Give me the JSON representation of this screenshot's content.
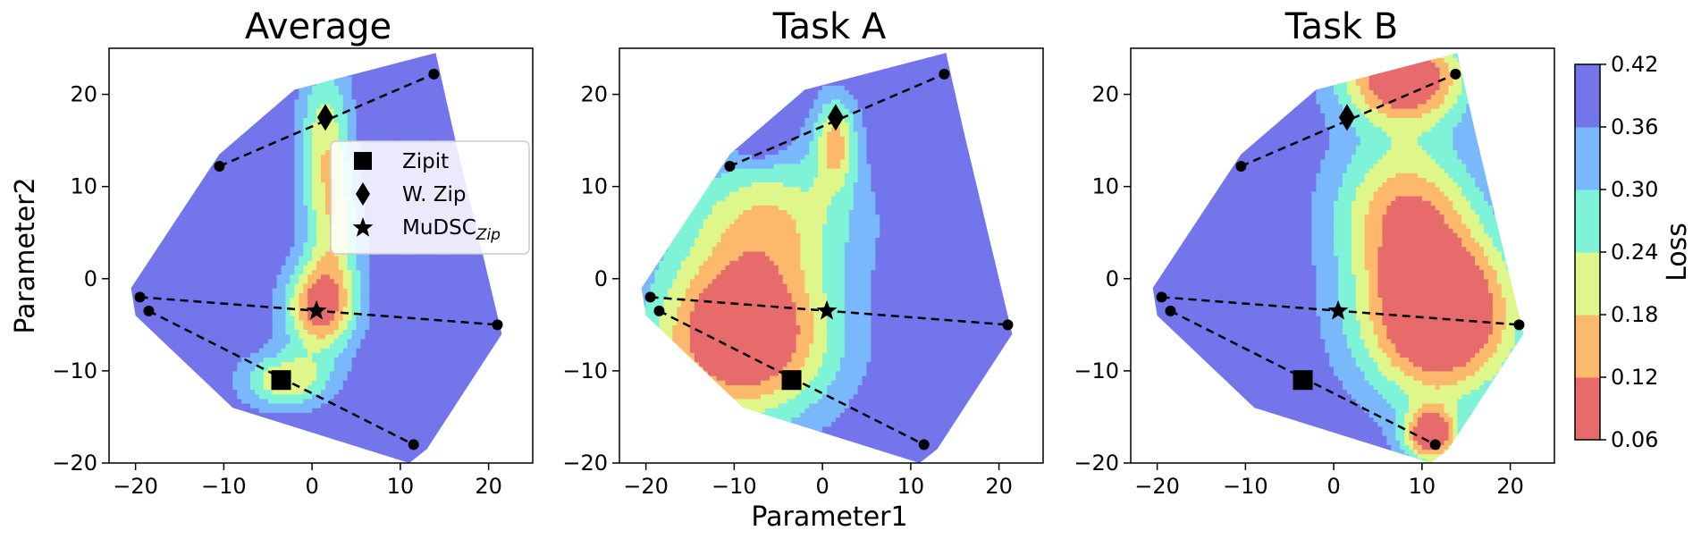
{
  "chart_data": {
    "type": "heatmap",
    "description_kind": "loss landscape contour plots",
    "panels": [
      {
        "title": "Average"
      },
      {
        "title": "Task A"
      },
      {
        "title": "Task B"
      }
    ],
    "xlabel": "Parameter1",
    "ylabel": "Parameter2",
    "xlim": [
      -23,
      25
    ],
    "ylim": [
      -20,
      25
    ],
    "xticks": [
      "−20",
      "−10",
      "0",
      "10",
      "20"
    ],
    "xtick_values": [
      -20,
      -10,
      0,
      10,
      20
    ],
    "yticks": [
      "−20",
      "−10",
      "0",
      "10",
      "20"
    ],
    "ytick_values": [
      -20,
      -10,
      0,
      10,
      20
    ],
    "colorbar": {
      "label": "Loss",
      "levels": [
        0.06,
        0.12,
        0.18,
        0.24,
        0.3,
        0.36,
        0.42
      ],
      "tick_labels": [
        "0.06",
        "0.12",
        "0.18",
        "0.24",
        "0.30",
        "0.36",
        "0.42"
      ],
      "colors": [
        "#e86b6b",
        "#fcb96c",
        "#dff78a",
        "#7ef3d7",
        "#78b8fb",
        "#7375eb"
      ]
    },
    "region_outline": [
      [
        -20.5,
        -1
      ],
      [
        -10.5,
        13.5
      ],
      [
        -2,
        20.5
      ],
      [
        14,
        24.5
      ],
      [
        16,
        16
      ],
      [
        20,
        0
      ],
      [
        21.5,
        -6
      ],
      [
        13,
        -18.5
      ],
      [
        11,
        -20
      ],
      [
        -9,
        -14
      ],
      [
        -20,
        -4
      ]
    ],
    "legend": [
      {
        "marker": "square",
        "label": "Zipit"
      },
      {
        "marker": "diamond",
        "label": "W. Zip"
      },
      {
        "marker": "star",
        "label_main": "MuDSC",
        "label_sub": "Zip"
      }
    ],
    "markers": {
      "zipit": {
        "x": -3.5,
        "y": -11
      },
      "wzip": {
        "x": 1.5,
        "y": 17.5
      },
      "mudsc": {
        "x": 0.5,
        "y": -3.5
      }
    },
    "dashed_lines": [
      {
        "from": [
          -10.5,
          12.2
        ],
        "to": [
          13.8,
          22.2
        ]
      },
      {
        "from": [
          -19.5,
          -2
        ],
        "to": [
          21,
          -5
        ]
      },
      {
        "from": [
          -18.5,
          -3.5
        ],
        "to": [
          11.5,
          -18
        ]
      }
    ],
    "endpoints": [
      [
        -10.5,
        12.2
      ],
      [
        13.8,
        22.2
      ],
      [
        -19.5,
        -2
      ],
      [
        21,
        -5
      ],
      [
        -18.5,
        -3.5
      ],
      [
        11.5,
        -18
      ]
    ],
    "loss_fields": {
      "average": {
        "base": 0.41,
        "blobs": [
          {
            "x": 1,
            "y": -3,
            "sx": 4,
            "sy": 5,
            "a": -0.33
          },
          {
            "x": 1.5,
            "y": 14,
            "sx": 3,
            "sy": 10,
            "a": -0.22
          },
          {
            "x": -3,
            "y": -11,
            "sx": 5,
            "sy": 3,
            "a": -0.22
          },
          {
            "x": 3,
            "y": 5,
            "sx": 3,
            "sy": 6,
            "a": -0.12
          }
        ]
      },
      "taskA": {
        "base": 0.41,
        "blobs": [
          {
            "x": -9,
            "y": -6,
            "sx": 10,
            "sy": 9,
            "a": -0.42
          },
          {
            "x": -6,
            "y": 7,
            "sx": 10,
            "sy": 7,
            "a": -0.2
          },
          {
            "x": 1.5,
            "y": 15,
            "sx": 2.5,
            "sy": 5,
            "a": -0.23
          },
          {
            "x": -7,
            "y": 15,
            "sx": 2.5,
            "sy": 2,
            "a": 0.1
          }
        ]
      },
      "taskB": {
        "base": 0.41,
        "blobs": [
          {
            "x": 12,
            "y": -4,
            "sx": 9,
            "sy": 9,
            "a": -0.45
          },
          {
            "x": 8,
            "y": 22,
            "sx": 7,
            "sy": 5,
            "a": -0.4
          },
          {
            "x": 8,
            "y": 8,
            "sx": 8,
            "sy": 8,
            "a": -0.25
          },
          {
            "x": 11,
            "y": -17,
            "sx": 3,
            "sy": 3,
            "a": -0.35
          }
        ]
      }
    }
  }
}
